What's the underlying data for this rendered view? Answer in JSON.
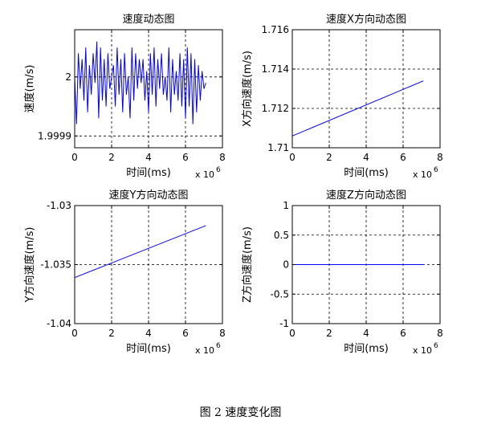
{
  "figure_caption": "图 2  速度变化图",
  "chart_data": [
    {
      "type": "line",
      "title": "速度动态图",
      "xlabel": "时间(ms)",
      "ylabel": "速度(m/s)",
      "x_multiplier": "x 10",
      "x_multiplier_exp": "6",
      "xlim": [
        0,
        8
      ],
      "ylim": [
        1.99988,
        2.00008
      ],
      "xticks": [
        0,
        2,
        4,
        6,
        8
      ],
      "xtick_labels": [
        "0",
        "2",
        "4",
        "6",
        "8"
      ],
      "yticks": [
        1.9999,
        2.0
      ],
      "ytick_labels": [
        "1.9999",
        "2"
      ],
      "grid": true,
      "series": [
        {
          "color": "#0000ff",
          "x": [
            0.0,
            0.1,
            0.2,
            0.3,
            0.4,
            0.5,
            0.6,
            0.7,
            0.8,
            0.9,
            1.0,
            1.1,
            1.2,
            1.3,
            1.4,
            1.5,
            1.6,
            1.7,
            1.8,
            1.9,
            2.0,
            2.1,
            2.2,
            2.3,
            2.4,
            2.5,
            2.6,
            2.7,
            2.8,
            2.9,
            3.0,
            3.1,
            3.2,
            3.3,
            3.4,
            3.5,
            3.6,
            3.7,
            3.8,
            3.9,
            4.0,
            4.1,
            4.2,
            4.3,
            4.4,
            4.5,
            4.6,
            4.7,
            4.8,
            4.9,
            5.0,
            5.1,
            5.2,
            5.3,
            5.4,
            5.5,
            5.6,
            5.7,
            5.8,
            5.9,
            6.0,
            6.1,
            6.2,
            6.3,
            6.4,
            6.5,
            6.6,
            6.7,
            6.8,
            6.9,
            7.0,
            7.1
          ],
          "y": [
            2.0,
            1.99992,
            2.00004,
            1.99998,
            2.00003,
            1.99996,
            2.00005,
            1.99994,
            2.00002,
            1.99997,
            2.00004,
            1.99999,
            2.00006,
            1.99993,
            2.00005,
            1.99996,
            2.00003,
            1.99995,
            2.00004,
            1.99998,
            2.0,
            2.00002,
            1.99995,
            2.00005,
            1.99997,
            2.00003,
            1.99994,
            2.00004,
            1.99997,
            2.0,
            1.99993,
            2.00005,
            1.99996,
            2.00004,
            1.99998,
            2.00003,
            1.99999,
            2.00003,
            1.99996,
            2.00001,
            1.99994,
            2.00004,
            1.99997,
            2.00005,
            1.99995,
            2.00003,
            1.99998,
            2.00004,
            1.99997,
            2.0,
            1.99996,
            2.00005,
            1.99994,
            2.00003,
            1.99997,
            2.00001,
            1.99996,
            2.00004,
            1.99995,
            2.00003,
            1.99993,
            2.00005,
            1.99995,
            2.00004,
            1.99992,
            2.00003,
            1.99994,
            2.00002,
            1.99996,
            2.00001,
            1.99998,
            1.99999
          ]
        }
      ]
    },
    {
      "type": "line",
      "title": "速度X方向动态图",
      "xlabel": "时间(ms)",
      "ylabel": "X方向速度(m/s)",
      "x_multiplier": "x 10",
      "x_multiplier_exp": "6",
      "xlim": [
        0,
        8
      ],
      "ylim": [
        1.71,
        1.716
      ],
      "xticks": [
        0,
        2,
        4,
        6,
        8
      ],
      "xtick_labels": [
        "0",
        "2",
        "4",
        "6",
        "8"
      ],
      "yticks": [
        1.71,
        1.712,
        1.714,
        1.716
      ],
      "ytick_labels": [
        "1.71",
        "1.712",
        "1.714",
        "1.716"
      ],
      "grid": true,
      "series": [
        {
          "color": "#0000ff",
          "x": [
            0,
            7.1
          ],
          "y": [
            1.7106,
            1.7134
          ]
        }
      ]
    },
    {
      "type": "line",
      "title": "速度Y方向动态图",
      "xlabel": "时间(ms)",
      "ylabel": "Y方向速度(m/s)",
      "x_multiplier": "x 10",
      "x_multiplier_exp": "6",
      "xlim": [
        0,
        8
      ],
      "ylim": [
        -1.04,
        -1.03
      ],
      "xticks": [
        0,
        2,
        4,
        6,
        8
      ],
      "xtick_labels": [
        "0",
        "2",
        "4",
        "6",
        "8"
      ],
      "yticks": [
        -1.04,
        -1.035,
        -1.03
      ],
      "ytick_labels": [
        "-1.04",
        "-1.035",
        "-1.03"
      ],
      "grid": true,
      "series": [
        {
          "color": "#0000ff",
          "x": [
            0,
            7.1
          ],
          "y": [
            -1.0361,
            -1.0317
          ]
        }
      ]
    },
    {
      "type": "line",
      "title": "速度Z方向动态图",
      "xlabel": "时间(ms)",
      "ylabel": "Z方向速度(m/s)",
      "x_multiplier": "x 10",
      "x_multiplier_exp": "6",
      "xlim": [
        0,
        8
      ],
      "ylim": [
        -1,
        1
      ],
      "xticks": [
        0,
        2,
        4,
        6,
        8
      ],
      "xtick_labels": [
        "0",
        "2",
        "4",
        "6",
        "8"
      ],
      "yticks": [
        -1,
        -0.5,
        0,
        0.5,
        1
      ],
      "ytick_labels": [
        "-1",
        "-0.5",
        "0",
        "0.5",
        "1"
      ],
      "grid": true,
      "series": [
        {
          "color": "#0000ff",
          "x": [
            0,
            7.1
          ],
          "y": [
            0,
            0
          ]
        }
      ]
    }
  ]
}
